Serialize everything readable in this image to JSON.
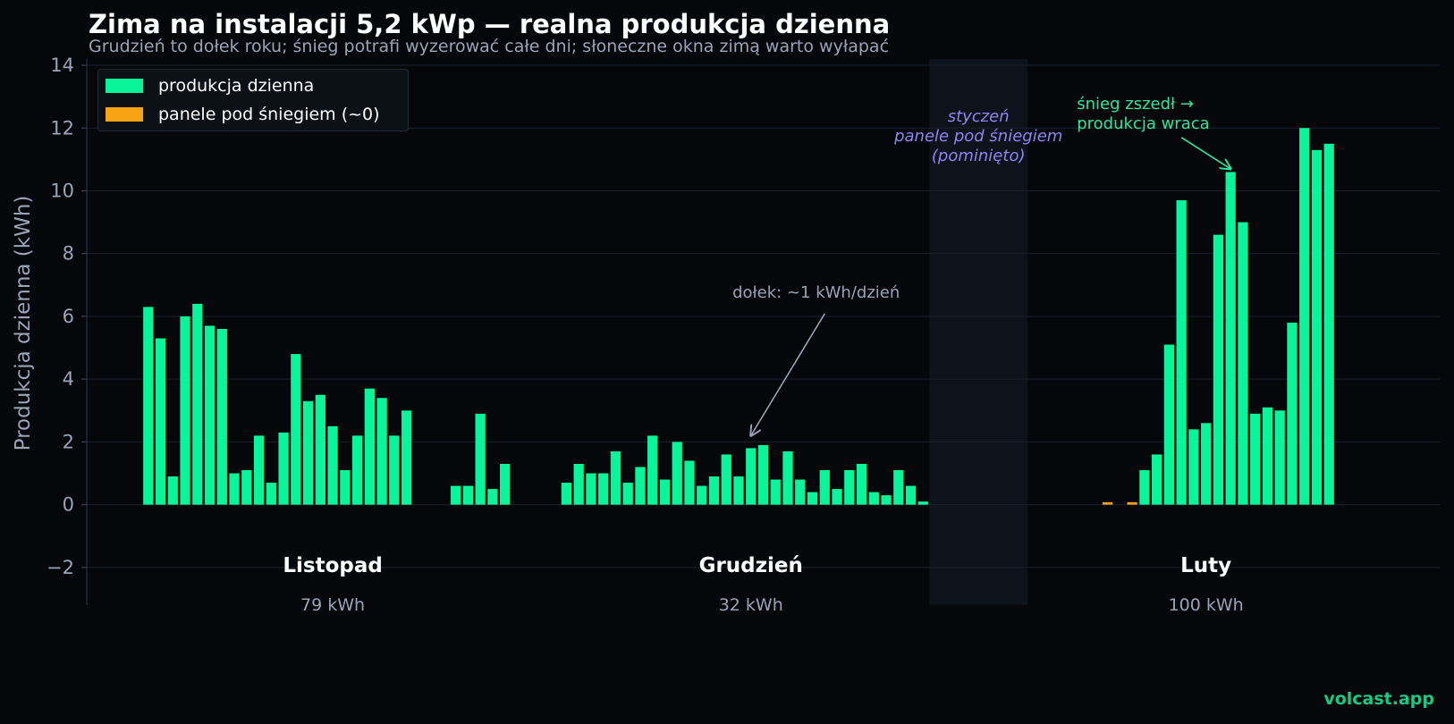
{
  "title": "Zima na instalacji 5,2 kWp — realna produkcja dzienna",
  "subtitle": "Grudzień to dołek roku; śnieg potrafi wyzerować całe dni; słoneczne okna zimą warto wyłapać",
  "watermark": "volcast.app",
  "colors": {
    "background": "#05070b",
    "production": "#08f59a",
    "snow": "#f5a213",
    "grid": "#1b212c",
    "axis_text": "#9aa4b6",
    "january_band": "#0d121b",
    "annotation_green": "#2ee6a0",
    "annotation_purple": "#8d86f2"
  },
  "legend": [
    {
      "label": "produkcja dzienna",
      "color": "#08f59a"
    },
    {
      "label": "panele pod śniegiem (~0)",
      "color": "#f5a213"
    }
  ],
  "chart_data": {
    "type": "bar",
    "title": "Zima na instalacji 5,2 kWp — realna produkcja dzienna",
    "subtitle": "Grudzień to dołek roku; śnieg potrafi wyzerować całe dni; słoneczne okna zimą warto wyłapać",
    "ylabel": "Produkcja dzienna (kWh)",
    "xlabel": "",
    "ylim": [
      -3.2,
      14.2
    ],
    "yticks": [
      -2,
      0,
      2,
      4,
      6,
      8,
      10,
      12,
      14
    ],
    "ytick_labels": [
      "−2",
      "0",
      "2",
      "4",
      "6",
      "8",
      "10",
      "12",
      "14"
    ],
    "grid": true,
    "legend_position": "top-left",
    "x_index_range": [
      0,
      110
    ],
    "series": [
      {
        "name": "produkcja dzienna",
        "color": "#08f59a",
        "points": [
          [
            5,
            6.3
          ],
          [
            6,
            5.3
          ],
          [
            7,
            0.9
          ],
          [
            8,
            6.0
          ],
          [
            9,
            6.4
          ],
          [
            10,
            5.7
          ],
          [
            11,
            5.6
          ],
          [
            12,
            1.0
          ],
          [
            13,
            1.1
          ],
          [
            14,
            2.2
          ],
          [
            15,
            0.7
          ],
          [
            16,
            2.3
          ],
          [
            17,
            4.8
          ],
          [
            18,
            3.3
          ],
          [
            19,
            3.5
          ],
          [
            20,
            2.5
          ],
          [
            21,
            1.1
          ],
          [
            22,
            2.2
          ],
          [
            23,
            3.7
          ],
          [
            24,
            3.4
          ],
          [
            25,
            2.2
          ],
          [
            26,
            3.0
          ],
          [
            30,
            0.6
          ],
          [
            31,
            0.6
          ],
          [
            32,
            2.9
          ],
          [
            33,
            0.5
          ],
          [
            34,
            1.3
          ],
          [
            39,
            0.7
          ],
          [
            40,
            1.3
          ],
          [
            41,
            1.0
          ],
          [
            42,
            1.0
          ],
          [
            43,
            1.7
          ],
          [
            44,
            0.7
          ],
          [
            45,
            1.2
          ],
          [
            46,
            2.2
          ],
          [
            47,
            0.8
          ],
          [
            48,
            2.0
          ],
          [
            49,
            1.4
          ],
          [
            50,
            0.6
          ],
          [
            51,
            0.9
          ],
          [
            52,
            1.6
          ],
          [
            53,
            0.9
          ],
          [
            54,
            1.8
          ],
          [
            55,
            1.9
          ],
          [
            56,
            0.8
          ],
          [
            57,
            1.7
          ],
          [
            58,
            0.8
          ],
          [
            59,
            0.4
          ],
          [
            60,
            1.1
          ],
          [
            61,
            0.5
          ],
          [
            62,
            1.1
          ],
          [
            63,
            1.3
          ],
          [
            64,
            0.4
          ],
          [
            65,
            0.3
          ],
          [
            66,
            1.1
          ],
          [
            67,
            0.6
          ],
          [
            68,
            0.1
          ],
          [
            86,
            1.1
          ],
          [
            87,
            1.6
          ],
          [
            88,
            5.1
          ],
          [
            89,
            9.7
          ],
          [
            90,
            2.4
          ],
          [
            91,
            2.6
          ],
          [
            92,
            8.6
          ],
          [
            93,
            10.6
          ],
          [
            94,
            9.0
          ],
          [
            95,
            2.9
          ],
          [
            96,
            3.1
          ],
          [
            97,
            3.0
          ],
          [
            98,
            5.8
          ],
          [
            99,
            12.0
          ],
          [
            100,
            11.3
          ],
          [
            101,
            11.5
          ]
        ]
      },
      {
        "name": "panele pod śniegiem (~0)",
        "color": "#f5a213",
        "points": [
          [
            83,
            0.08
          ],
          [
            85,
            0.08
          ]
        ]
      }
    ],
    "shaded_region": {
      "x_from": 68.5,
      "x_to": 76.5
    },
    "months": [
      {
        "name": "Listopad",
        "total": "79 kWh",
        "x": 20
      },
      {
        "name": "Grudzień",
        "total": "32 kWh",
        "x": 54
      },
      {
        "name": "Luty",
        "total": "100 kWh",
        "x": 91
      }
    ],
    "annotations": [
      {
        "lines": [
          "dołek: ~1 kWh/dzień"
        ],
        "text_x": 52.5,
        "text_y": 6.6,
        "arrow_to": [
          54,
          2.2
        ],
        "color": "#9aa4b6",
        "italic": false
      },
      {
        "lines": [
          "styczeń",
          "panele pod śniegiem",
          "(pominięto)"
        ],
        "text_x": 72.5,
        "text_y": 12.2,
        "color": "#8d86f2",
        "italic": true
      },
      {
        "lines": [
          "śnieg zszedł →",
          "produkcja wraca"
        ],
        "text_x": 80.5,
        "text_y": 12.6,
        "arrow_from": [
          89,
          11.7
        ],
        "arrow_to": [
          93,
          10.7
        ],
        "color": "#2ee6a0",
        "italic": false
      }
    ]
  }
}
